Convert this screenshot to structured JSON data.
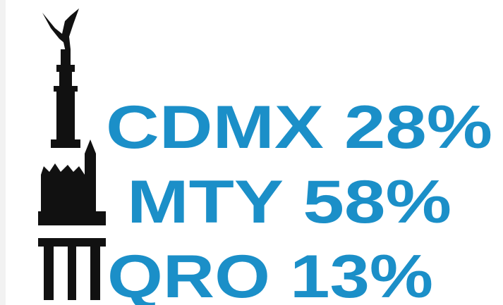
{
  "items": [
    {
      "text": "CDMX 28%"
    },
    {
      "text": "MTY 58%"
    },
    {
      "text": "QRO 13%"
    }
  ]
}
